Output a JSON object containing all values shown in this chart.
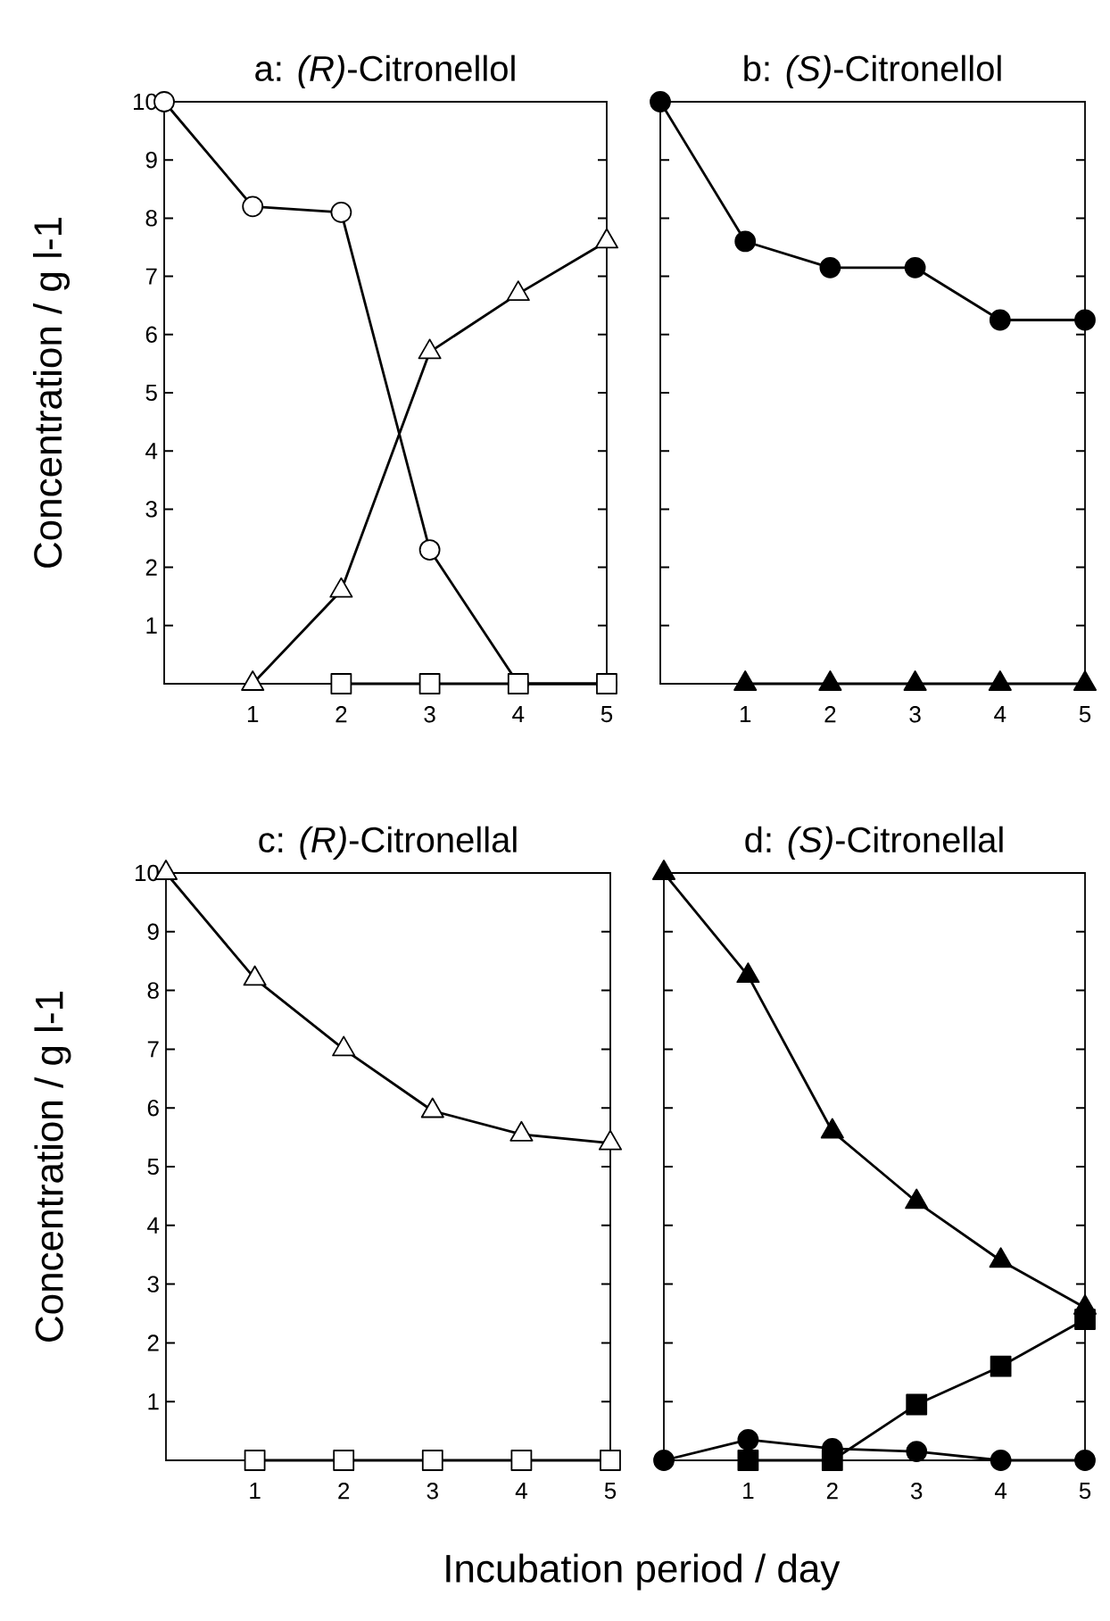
{
  "chart_data": [
    {
      "type": "line",
      "title": "a: *(R)*-Citronellol",
      "ylabel": "Concentration / g l-1",
      "xlim": [
        0,
        5
      ],
      "ylim": [
        0,
        10
      ],
      "xticks": [
        1,
        2,
        3,
        4,
        5
      ],
      "yticks": [
        1,
        2,
        3,
        4,
        5,
        6,
        7,
        8,
        9,
        10
      ],
      "series": [
        {
          "color": "#000000",
          "marker": "circle",
          "colors": [
            "#ffffff",
            "#ffffff",
            "#ffffff",
            "#ffffff",
            "#ffffff",
            "#ffffff"
          ],
          "x": [
            0,
            1,
            2,
            3,
            4,
            5
          ],
          "values": [
            10,
            8.2,
            8.1,
            2.3,
            0,
            0
          ]
        },
        {
          "color": "#000000",
          "marker": "triangle",
          "colors": [
            "#ffffff",
            "#ffffff",
            "#ffffff",
            "#ffffff",
            "#ffffff"
          ],
          "x": [
            1,
            2,
            3,
            4,
            5
          ],
          "values": [
            0,
            1.6,
            5.7,
            6.7,
            7.6
          ]
        },
        {
          "color": "#000000",
          "marker": "square",
          "colors": [
            "#ffffff",
            "#ffffff",
            "#ffffff",
            "#ffffff"
          ],
          "x": [
            2,
            3,
            4,
            5
          ],
          "values": [
            0,
            0,
            0,
            0
          ]
        }
      ]
    },
    {
      "type": "line",
      "title": "b: *(S)*-Citronellol",
      "xlim": [
        0,
        5
      ],
      "ylim": [
        0,
        10
      ],
      "xticks": [
        1,
        2,
        3,
        4,
        5
      ],
      "yticks": [
        1,
        2,
        3,
        4,
        5,
        6,
        7,
        8,
        9,
        10
      ],
      "tick_labels": "x",
      "series": [
        {
          "color": "#000000",
          "marker": "circle",
          "x": [
            0,
            1,
            2,
            3,
            4,
            5
          ],
          "values": [
            10,
            7.6,
            7.15,
            7.15,
            6.25,
            6.25
          ]
        },
        {
          "color": "#000000",
          "marker": "triangle",
          "x": [
            1,
            2,
            3,
            4,
            5
          ],
          "values": [
            0,
            0,
            0,
            0,
            0
          ]
        }
      ]
    },
    {
      "type": "line",
      "title": "c: *(R)*-Citronellal",
      "ylabel": "Concentration / g l-1",
      "xlabel": "Incubation period / day",
      "xlim": [
        0,
        5
      ],
      "ylim": [
        0,
        10
      ],
      "xticks": [
        1,
        2,
        3,
        4,
        5
      ],
      "yticks": [
        1,
        2,
        3,
        4,
        5,
        6,
        7,
        8,
        9,
        10
      ],
      "series": [
        {
          "color": "#000000",
          "marker": "triangle",
          "colors": [
            "#ffffff",
            "#ffffff",
            "#ffffff",
            "#ffffff",
            "#ffffff",
            "#ffffff"
          ],
          "x": [
            0,
            1,
            2,
            3,
            4,
            5
          ],
          "values": [
            10,
            8.2,
            7.0,
            5.95,
            5.55,
            5.4
          ]
        },
        {
          "color": "#000000",
          "marker": "square",
          "colors": [
            "#ffffff",
            "#ffffff",
            "#ffffff",
            "#ffffff",
            "#ffffff"
          ],
          "x": [
            1,
            2,
            3,
            4,
            5
          ],
          "values": [
            0,
            0,
            0,
            0,
            0
          ]
        }
      ]
    },
    {
      "type": "line",
      "title": "d: *(S)*-Citronellal",
      "xlim": [
        0,
        5
      ],
      "ylim": [
        0,
        10
      ],
      "xticks": [
        1,
        2,
        3,
        4,
        5
      ],
      "yticks": [
        1,
        2,
        3,
        4,
        5,
        6,
        7,
        8,
        9,
        10
      ],
      "tick_labels": "x",
      "series": [
        {
          "color": "#000000",
          "marker": "triangle",
          "x": [
            0,
            1,
            2,
            3,
            4,
            5
          ],
          "values": [
            10,
            8.25,
            5.6,
            4.4,
            3.4,
            2.6
          ]
        },
        {
          "color": "#000000",
          "marker": "square",
          "x": [
            1,
            2,
            3,
            4,
            5
          ],
          "values": [
            0,
            0,
            0.95,
            1.6,
            2.4
          ]
        },
        {
          "color": "#000000",
          "marker": "circle",
          "x": [
            0,
            1,
            2,
            3,
            4,
            5
          ],
          "values": [
            0,
            0.35,
            0.2,
            0.15,
            0,
            0
          ]
        }
      ]
    }
  ]
}
